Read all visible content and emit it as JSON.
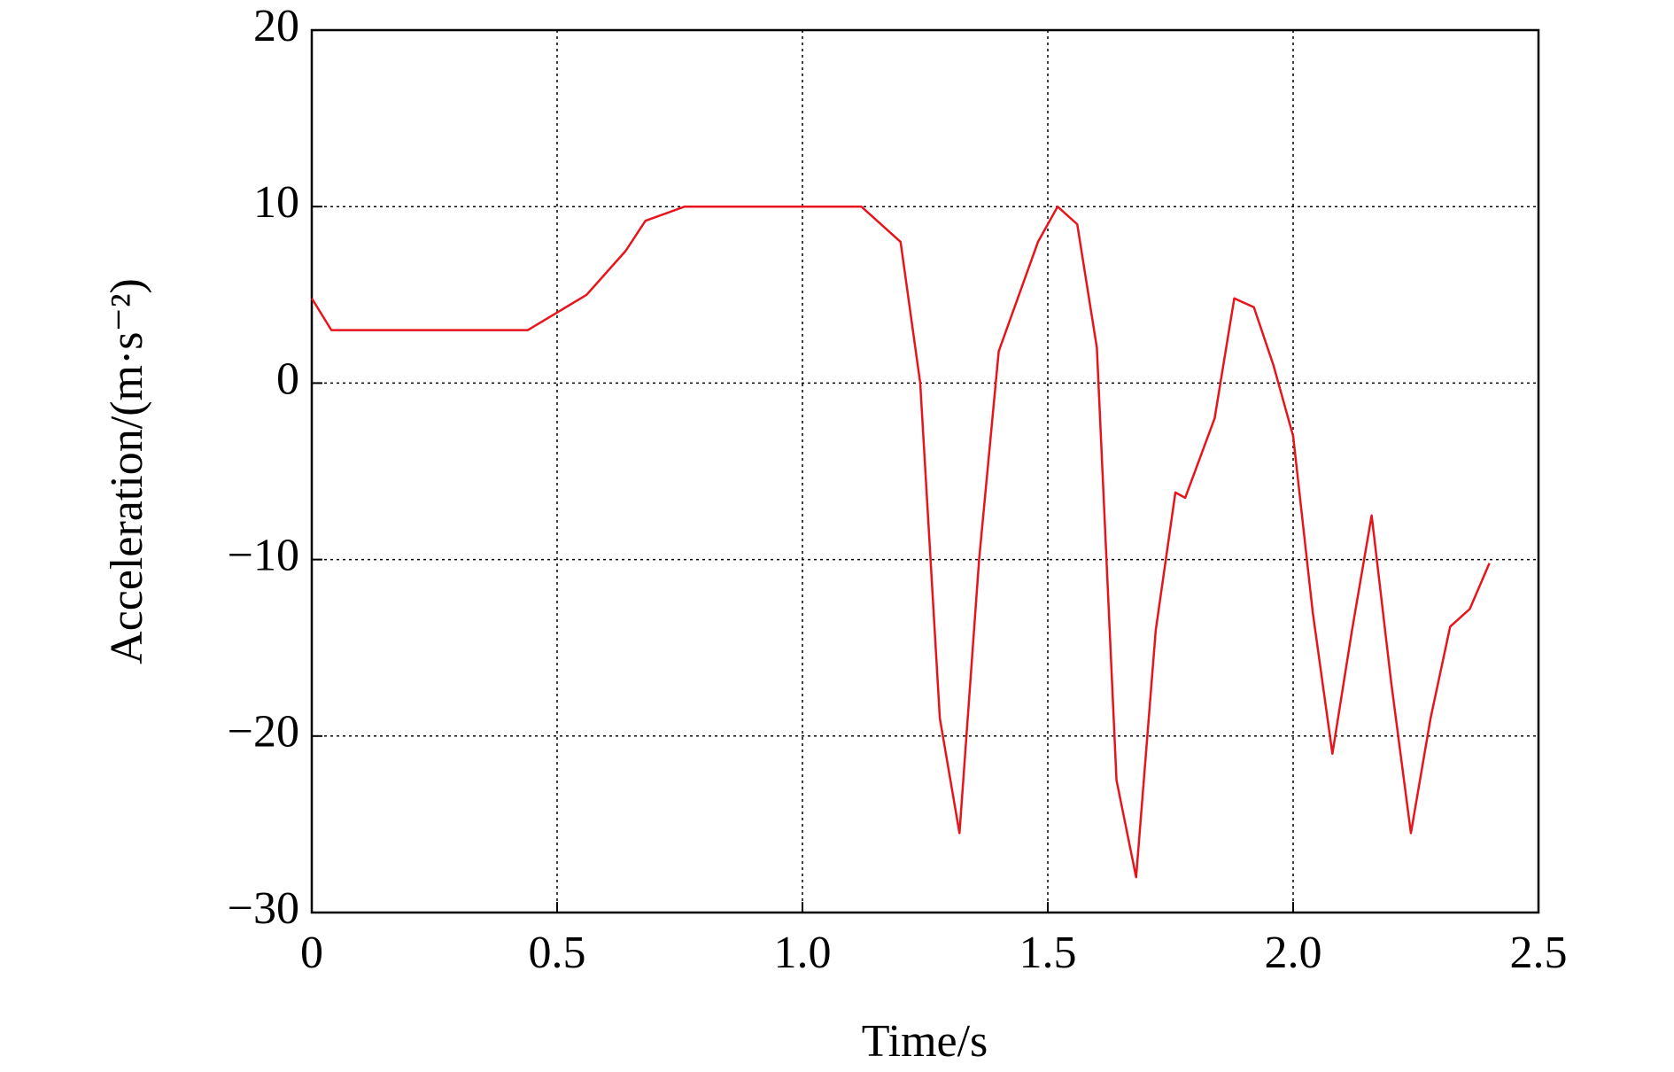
{
  "chart_data": {
    "type": "line",
    "xlabel": "Time/s",
    "ylabel": "Acceleration/(m·s⁻²)",
    "x": [
      0,
      0.04,
      0.44,
      0.56,
      0.64,
      0.68,
      0.76,
      1.12,
      1.2,
      1.24,
      1.28,
      1.32,
      1.36,
      1.4,
      1.48,
      1.52,
      1.56,
      1.6,
      1.64,
      1.68,
      1.72,
      1.76,
      1.78,
      1.84,
      1.88,
      1.92,
      1.96,
      2.0,
      2.04,
      2.08,
      2.12,
      2.16,
      2.2,
      2.24,
      2.28,
      2.32,
      2.36,
      2.4
    ],
    "values": [
      4.8,
      3,
      3,
      5,
      7.5,
      9.2,
      10,
      10,
      8,
      0,
      -19,
      -25.5,
      -10,
      1.8,
      8,
      10,
      9,
      2,
      -22.5,
      -28,
      -14,
      -6.2,
      -6.5,
      -2,
      4.8,
      4.3,
      1,
      -3,
      -13,
      -21,
      -14,
      -7.5,
      -17,
      -25.5,
      -19,
      -13.8,
      -12.8,
      -10.2
    ],
    "color": "#e8141b",
    "xlim": [
      0,
      2.5
    ],
    "xticks": [
      0,
      {
        "value": 0.5,
        "label": "0.5"
      },
      {
        "value": 1,
        "label": "1.0"
      },
      {
        "value": 1.5,
        "label": "1.5"
      },
      {
        "value": 2,
        "label": "2.0"
      },
      {
        "value": 2.5,
        "label": "2.5"
      }
    ],
    "ylim": [
      -30,
      20
    ],
    "yticks": [
      20,
      10,
      0,
      {
        "value": -10,
        "label": "−10"
      },
      {
        "value": -20,
        "label": "−20"
      },
      {
        "value": -30,
        "label": "−30"
      }
    ],
    "grid": true
  }
}
